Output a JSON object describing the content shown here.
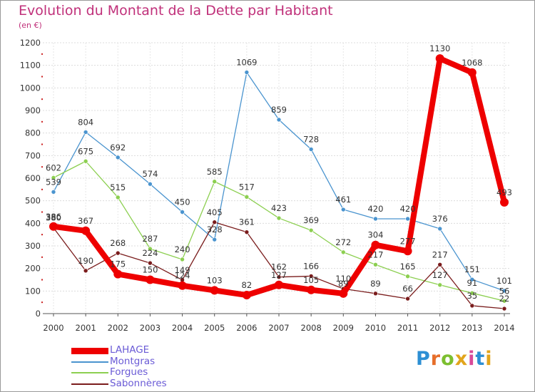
{
  "title": "Evolution du Montant de la Dette par Habitant",
  "unit": "(en €)",
  "logo": {
    "text": "Proxiti",
    "letter_colors": [
      "#2d8fd4",
      "#e66e2a",
      "#7cbf2f",
      "#e2a51c",
      "#d94a9a",
      "#2d8fd4",
      "#e2a51c"
    ]
  },
  "chart_data": {
    "type": "line",
    "title": "Evolution du Montant de la Dette par Habitant",
    "subtitle": "(en €)",
    "x": [
      "2000",
      "2001",
      "2002",
      "2003",
      "2004",
      "2005",
      "2006",
      "2007",
      "2008",
      "2009",
      "2010",
      "2011",
      "2012",
      "2013",
      "2014"
    ],
    "ylim": [
      0,
      1200
    ],
    "yticks": [
      0,
      100,
      200,
      300,
      400,
      500,
      600,
      700,
      800,
      900,
      1000,
      1100,
      1200
    ],
    "grid": true,
    "legend_position": "bottom-left",
    "series": [
      {
        "name": "LAHAGE",
        "color": "#ee0000",
        "width": "thick",
        "values": [
          386,
          367,
          175,
          150,
          124,
          103,
          82,
          127,
          105,
          89,
          304,
          277,
          1130,
          1068,
          493
        ]
      },
      {
        "name": "Montgras",
        "color": "#4a94cf",
        "width": "thin",
        "values": [
          539,
          804,
          692,
          574,
          450,
          328,
          1069,
          859,
          728,
          461,
          420,
          420,
          376,
          151,
          101
        ]
      },
      {
        "name": "Forgues",
        "color": "#8ccf50",
        "width": "thin",
        "values": [
          602,
          675,
          515,
          287,
          240,
          585,
          517,
          423,
          369,
          272,
          217,
          165,
          127,
          91,
          56
        ]
      },
      {
        "name": "Sabonnères",
        "color": "#7a1c1c",
        "width": "thin",
        "values": [
          380,
          190,
          268,
          224,
          149,
          405,
          361,
          162,
          166,
          110,
          89,
          66,
          217,
          35,
          22
        ]
      }
    ]
  }
}
